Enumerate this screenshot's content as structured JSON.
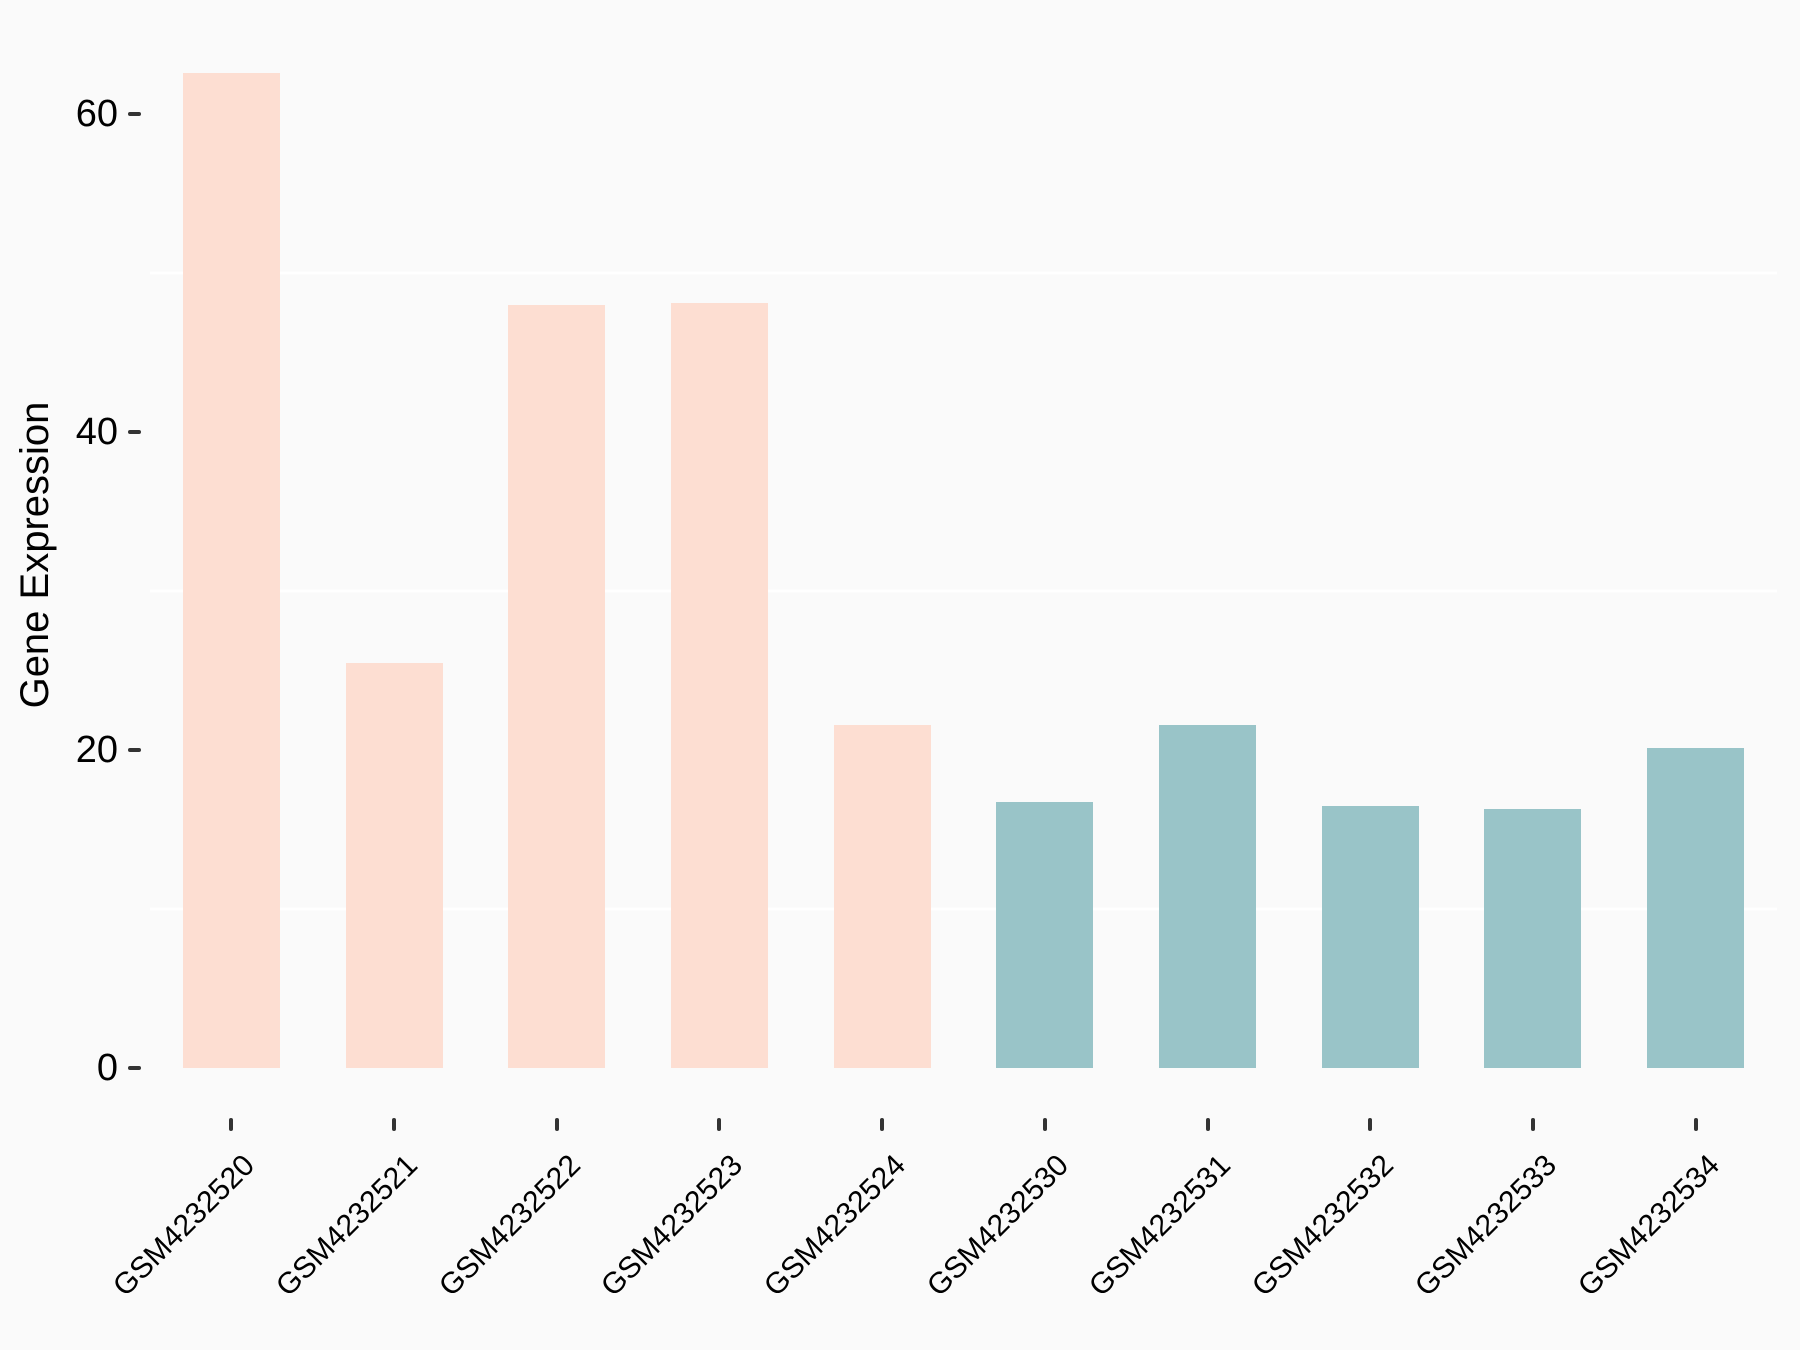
{
  "chart_data": {
    "type": "bar",
    "title": "",
    "xlabel": "",
    "ylabel": "Gene Expression",
    "categories": [
      "GSM4232520",
      "GSM4232521",
      "GSM4232522",
      "GSM4232523",
      "GSM4232524",
      "GSM4232530",
      "GSM4232531",
      "GSM4232532",
      "GSM4232533",
      "GSM4232534"
    ],
    "values": [
      62.6,
      25.5,
      48.0,
      48.1,
      21.6,
      16.7,
      21.6,
      16.5,
      16.3,
      20.1
    ],
    "bar_colors": [
      "#FDDED2",
      "#FDDED2",
      "#FDDED2",
      "#FDDED2",
      "#FDDED2",
      "#99C4C8",
      "#99C4C8",
      "#99C4C8",
      "#99C4C8",
      "#99C4C8"
    ],
    "group_colors": {
      "left_group_peach": "#FDDED2",
      "right_group_teal": "#99C4C8"
    },
    "y_ticks": [
      0,
      20,
      40,
      60
    ],
    "minor_gridlines": [
      10,
      30,
      50
    ],
    "ylim": [
      0,
      65.7
    ],
    "legend_position": "none",
    "grid": "minor horizontal gridlines only, white on light gray",
    "styles": {
      "background_color": "#FAFAFA",
      "gridline_color": "#FFFFFF",
      "tick_mark_color": "#333333",
      "text_color": "#000000"
    }
  }
}
